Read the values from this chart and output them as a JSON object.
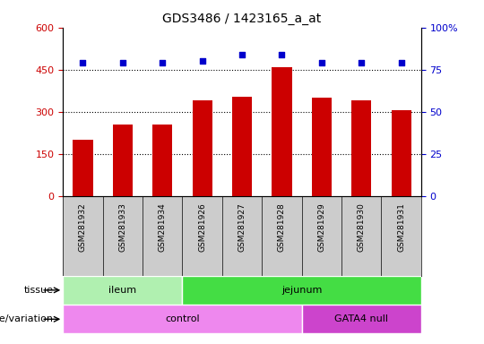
{
  "title": "GDS3486 / 1423165_a_at",
  "samples": [
    "GSM281932",
    "GSM281933",
    "GSM281934",
    "GSM281926",
    "GSM281927",
    "GSM281928",
    "GSM281929",
    "GSM281930",
    "GSM281931"
  ],
  "counts": [
    200,
    255,
    255,
    340,
    355,
    460,
    350,
    340,
    305
  ],
  "percentile_ranks": [
    79,
    79,
    79,
    80,
    84,
    84,
    79,
    79,
    79
  ],
  "ylim_left": [
    0,
    600
  ],
  "ylim_right": [
    0,
    100
  ],
  "yticks_left": [
    0,
    150,
    300,
    450,
    600
  ],
  "yticks_right": [
    0,
    25,
    50,
    75,
    100
  ],
  "bar_color": "#cc0000",
  "dot_color": "#0000cc",
  "tissue_groups": [
    {
      "label": "ileum",
      "start": 0,
      "end": 3,
      "color": "#b0f0b0"
    },
    {
      "label": "jejunum",
      "start": 3,
      "end": 9,
      "color": "#44dd44"
    }
  ],
  "genotype_groups": [
    {
      "label": "control",
      "start": 0,
      "end": 6,
      "color": "#ee88ee"
    },
    {
      "label": "GATA4 null",
      "start": 6,
      "end": 9,
      "color": "#cc44cc"
    }
  ],
  "row_labels": [
    "tissue",
    "genotype/variation"
  ],
  "legend_count_color": "#cc0000",
  "legend_pct_color": "#0000cc",
  "tick_label_color_left": "#cc0000",
  "tick_label_color_right": "#0000cc",
  "title_color": "#000000",
  "figsize": [
    5.4,
    3.84
  ],
  "dpi": 100
}
